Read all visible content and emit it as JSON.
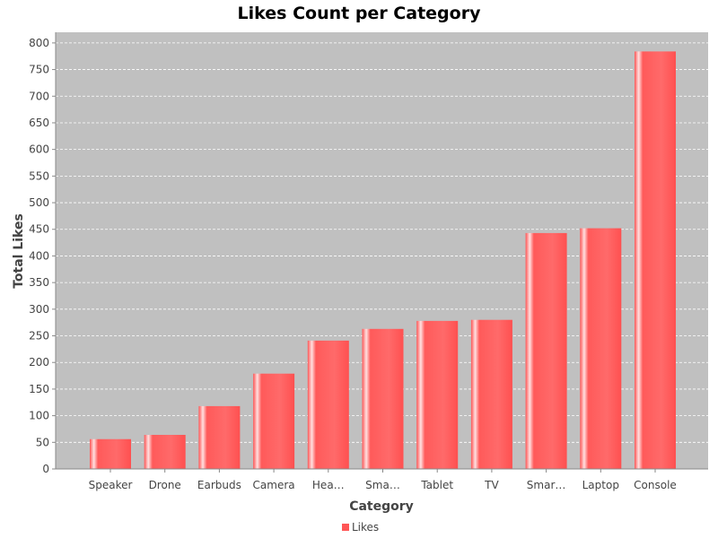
{
  "chart_data": {
    "type": "bar",
    "title": "Likes Count per Category",
    "xlabel": "Category",
    "ylabel": "Total Likes",
    "categories": [
      "Speaker",
      "Drone",
      "Earbuds",
      "Camera",
      "Hea…",
      "Sma…",
      "Tablet",
      "TV",
      "Smar…",
      "Laptop",
      "Console"
    ],
    "series": [
      {
        "name": "Likes",
        "values": [
          56,
          64,
          118,
          179,
          241,
          263,
          278,
          280,
          443,
          452,
          784
        ],
        "color": "#ff5555"
      }
    ],
    "ylim": [
      0,
      820
    ],
    "yticks": [
      0,
      50,
      100,
      150,
      200,
      250,
      300,
      350,
      400,
      450,
      500,
      550,
      600,
      650,
      700,
      750,
      800
    ],
    "grid": true,
    "legend": "bottom-center",
    "plot_background": "#c0c0c0"
  }
}
